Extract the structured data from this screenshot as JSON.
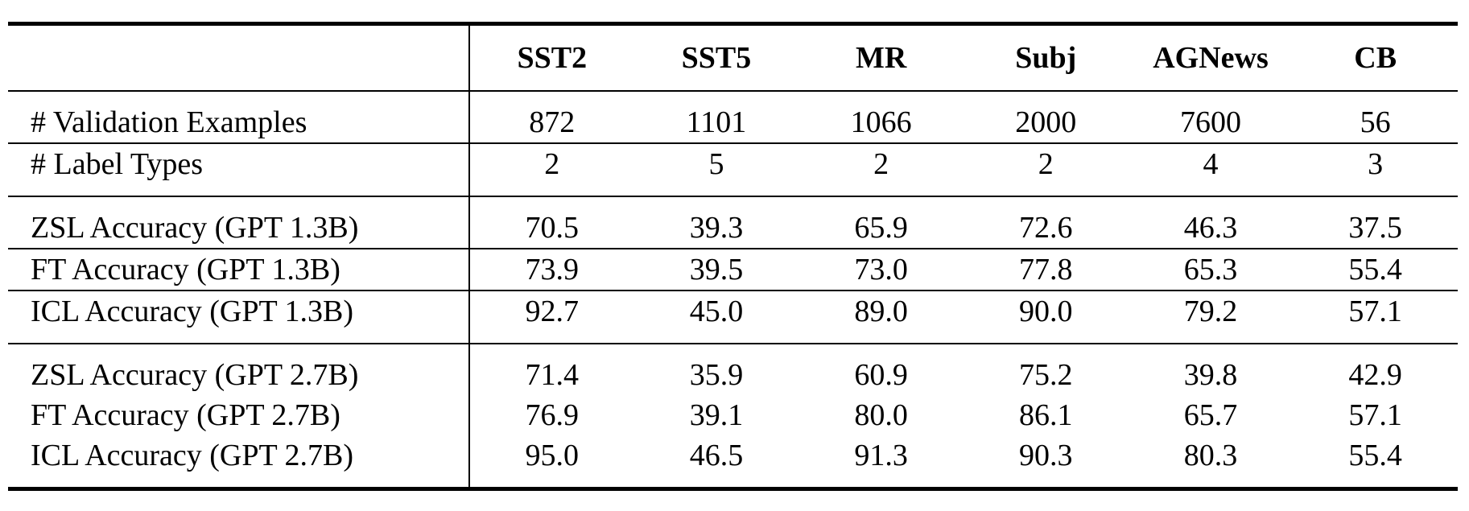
{
  "table": {
    "columns": [
      "",
      "SST2",
      "SST5",
      "MR",
      "Subj",
      "AGNews",
      "CB"
    ],
    "sections": [
      {
        "rows": [
          {
            "label": "# Validation Examples",
            "values": [
              "872",
              "1101",
              "1066",
              "2000",
              "7600",
              "56"
            ]
          },
          {
            "label": "# Label Types",
            "values": [
              "2",
              "5",
              "2",
              "2",
              "4",
              "3"
            ]
          }
        ]
      },
      {
        "rows": [
          {
            "label": "ZSL Accuracy (GPT 1.3B)",
            "values": [
              "70.5",
              "39.3",
              "65.9",
              "72.6",
              "46.3",
              "37.5"
            ]
          },
          {
            "label": "FT Accuracy (GPT 1.3B)",
            "values": [
              "73.9",
              "39.5",
              "73.0",
              "77.8",
              "65.3",
              "55.4"
            ]
          },
          {
            "label": "ICL Accuracy (GPT 1.3B)",
            "values": [
              "92.7",
              "45.0",
              "89.0",
              "90.0",
              "79.2",
              "57.1"
            ]
          }
        ]
      },
      {
        "rows": [
          {
            "label": "ZSL Accuracy (GPT 2.7B)",
            "values": [
              "71.4",
              "35.9",
              "60.9",
              "75.2",
              "39.8",
              "42.9"
            ]
          },
          {
            "label": "FT Accuracy (GPT 2.7B)",
            "values": [
              "76.9",
              "39.1",
              "80.0",
              "86.1",
              "65.7",
              "57.1"
            ]
          },
          {
            "label": "ICL Accuracy (GPT 2.7B)",
            "values": [
              "95.0",
              "46.5",
              "91.3",
              "90.3",
              "80.3",
              "55.4"
            ]
          }
        ]
      }
    ],
    "colors": {
      "rule": "#000000",
      "text": "#000000",
      "background": "#ffffff"
    }
  }
}
